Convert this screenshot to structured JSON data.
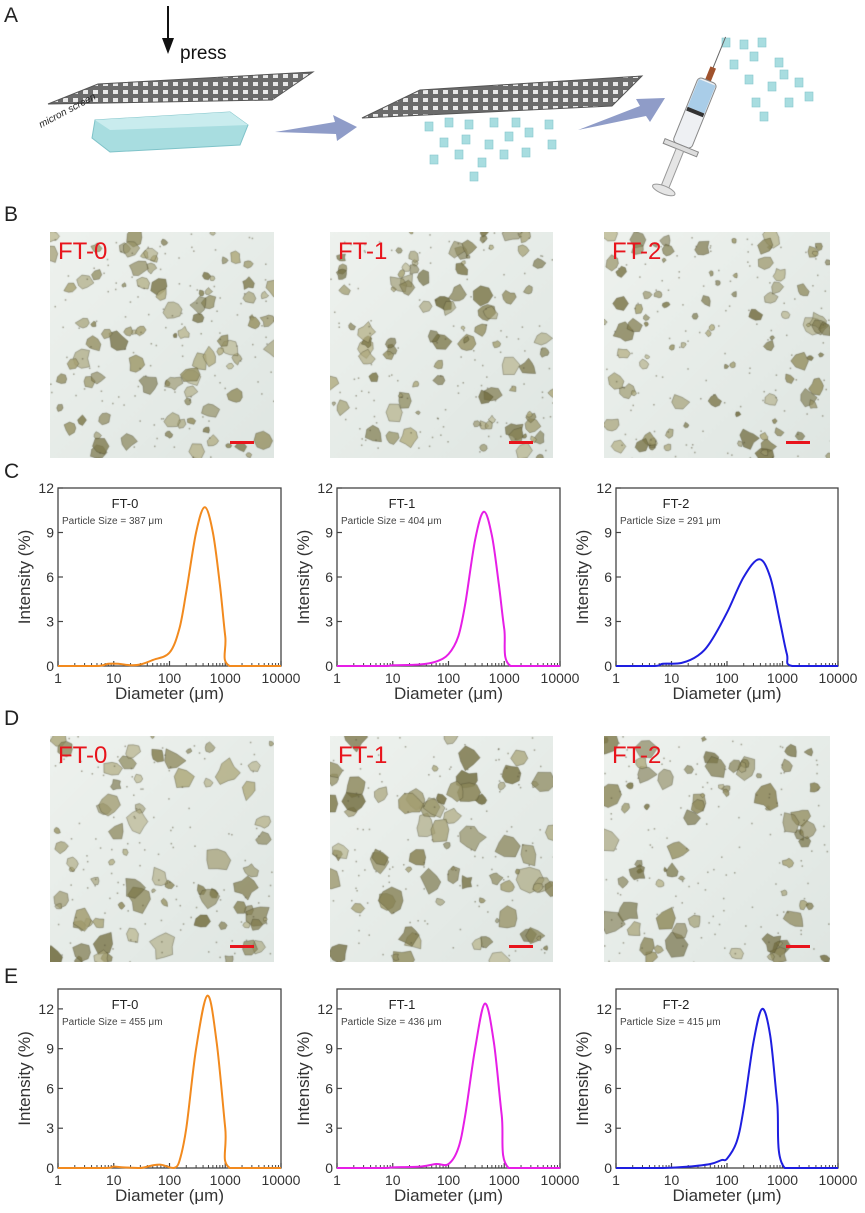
{
  "panel_labels": {
    "a": "A",
    "b": "B",
    "c": "C",
    "d": "D",
    "e": "E"
  },
  "schematic": {
    "press_label": "press",
    "screen_label": "micron screen",
    "colors": {
      "gel": "#a8dde0",
      "arrow": "#8f9cc8",
      "screen": "#6b6b6b"
    }
  },
  "micrographs": {
    "accent_color": "#e8141c",
    "row_b": [
      {
        "label": "FT-0"
      },
      {
        "label": "FT-1"
      },
      {
        "label": "FT-2"
      }
    ],
    "row_d": [
      {
        "label": "FT-0"
      },
      {
        "label": "FT-1"
      },
      {
        "label": "FT-2"
      }
    ]
  },
  "chart_data": [
    {
      "panel": "C",
      "type": "line",
      "name": "FT-0",
      "annotation": "Particle Size = 387 μm",
      "color": "#f28a1e",
      "xlabel": "Diameter (μm)",
      "ylabel": "Intensity (%)",
      "xscale": "log",
      "xlim": [
        1,
        10000
      ],
      "ylim": [
        0,
        12
      ],
      "xticks": [
        "1",
        "10",
        "100",
        "1000",
        "10000"
      ],
      "yticks": [
        "0",
        "3",
        "6",
        "9",
        "12"
      ],
      "x": [
        1,
        5,
        8,
        12,
        20,
        30,
        50,
        100,
        150,
        200,
        300,
        430,
        600,
        800,
        1000,
        1200,
        10000
      ],
      "y": [
        0,
        0,
        0.15,
        0.15,
        0.05,
        0.1,
        0.4,
        0.9,
        2.5,
        5,
        9,
        10.7,
        9,
        5.5,
        2,
        0,
        0
      ]
    },
    {
      "panel": "C",
      "type": "line",
      "name": "FT-1",
      "annotation": "Particle Size = 404 μm",
      "color": "#e61ee6",
      "xlabel": "Diameter (μm)",
      "ylabel": "Intensity (%)",
      "xscale": "log",
      "xlim": [
        1,
        10000
      ],
      "ylim": [
        0,
        12
      ],
      "xticks": [
        "1",
        "10",
        "100",
        "1000",
        "10000"
      ],
      "yticks": [
        "0",
        "3",
        "6",
        "9",
        "12"
      ],
      "x": [
        1,
        7,
        10,
        30,
        60,
        100,
        150,
        200,
        300,
        430,
        600,
        800,
        1000,
        1300,
        10000
      ],
      "y": [
        0,
        0,
        0.05,
        0.1,
        0.3,
        0.8,
        2,
        4.2,
        8.5,
        10.4,
        8.8,
        5.5,
        2.5,
        0,
        0
      ]
    },
    {
      "panel": "C",
      "type": "line",
      "name": "FT-2",
      "annotation": "Particle Size = 291 μm",
      "color": "#1e1ee0",
      "xlabel": "Diameter (μm)",
      "ylabel": "Intensity (%)",
      "xscale": "log",
      "xlim": [
        1,
        10000
      ],
      "ylim": [
        0,
        12
      ],
      "xticks": [
        "1",
        "10",
        "100",
        "1000",
        "10000"
      ],
      "yticks": [
        "0",
        "3",
        "6",
        "9",
        "12"
      ],
      "x": [
        1,
        5,
        7,
        15,
        30,
        50,
        100,
        200,
        380,
        600,
        900,
        1200,
        1500,
        10000
      ],
      "y": [
        0,
        0,
        0.15,
        0.2,
        0.7,
        1.6,
        3.6,
        6,
        7.2,
        6,
        3,
        0.8,
        0,
        0
      ]
    },
    {
      "panel": "E",
      "type": "line",
      "name": "FT-0",
      "annotation": "Particle Size = 455 μm",
      "color": "#f28a1e",
      "xlabel": "Diameter (μm)",
      "ylabel": "Intensity (%)",
      "xscale": "log",
      "xlim": [
        1,
        10000
      ],
      "ylim": [
        0,
        13.5
      ],
      "xticks": [
        "1",
        "10",
        "100",
        "1000",
        "10000"
      ],
      "yticks": [
        "0",
        "3",
        "6",
        "9",
        "12"
      ],
      "x": [
        1,
        7,
        10,
        15,
        30,
        50,
        70,
        100,
        120,
        150,
        200,
        300,
        480,
        700,
        1000,
        1200,
        10000
      ],
      "y": [
        0,
        0,
        0.1,
        0.05,
        0,
        0.2,
        0.25,
        0.05,
        0,
        0.5,
        3,
        9,
        13,
        9.5,
        3,
        0,
        0
      ]
    },
    {
      "panel": "E",
      "type": "line",
      "name": "FT-1",
      "annotation": "Particle Size = 436 μm",
      "color": "#e61ee6",
      "xlabel": "Diameter (μm)",
      "ylabel": "Intensity (%)",
      "xscale": "log",
      "xlim": [
        1,
        10000
      ],
      "ylim": [
        0,
        13.5
      ],
      "xticks": [
        "1",
        "10",
        "100",
        "1000",
        "10000"
      ],
      "yticks": [
        "0",
        "3",
        "6",
        "9",
        "12"
      ],
      "x": [
        1,
        7,
        10,
        30,
        60,
        100,
        150,
        200,
        300,
        450,
        650,
        900,
        1200,
        10000
      ],
      "y": [
        0,
        0,
        0.05,
        0.1,
        0.3,
        0.3,
        1.5,
        4,
        9,
        12.4,
        9.5,
        4,
        0,
        0
      ]
    },
    {
      "panel": "E",
      "type": "line",
      "name": "FT-2",
      "annotation": "Particle Size = 415 μm",
      "color": "#1e1ee0",
      "xlabel": "Diameter (μm)",
      "ylabel": "Intensity (%)",
      "xscale": "log",
      "xlim": [
        1,
        10000
      ],
      "ylim": [
        0,
        13.5
      ],
      "xticks": [
        "1",
        "10",
        "100",
        "1000",
        "10000"
      ],
      "yticks": [
        "0",
        "3",
        "6",
        "9",
        "12"
      ],
      "x": [
        1,
        7,
        20,
        50,
        80,
        100,
        150,
        200,
        300,
        430,
        600,
        800,
        1100,
        10000
      ],
      "y": [
        0,
        0,
        0.1,
        0.3,
        0.6,
        0.7,
        2,
        4.5,
        9.5,
        12,
        10,
        5,
        0,
        0
      ]
    }
  ]
}
